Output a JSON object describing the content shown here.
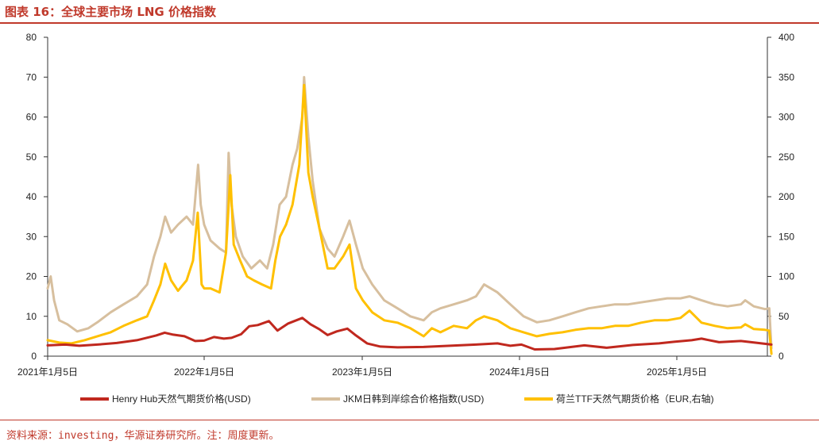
{
  "figure": {
    "title": "图表 16：全球主要市场 LNG 价格指数",
    "source": "资料来源：investing，华源证券研究所。注：周度更新。"
  },
  "colors": {
    "henry": "#c0281e",
    "jkm": "#d7bf9e",
    "ttf": "#ffc000",
    "rule": "#c0392b"
  },
  "chart_data": {
    "type": "line",
    "x_ticks": [
      "2021年1月5日",
      "2022年1月5日",
      "2023年1月5日",
      "2024年1月5日",
      "2025年1月5日"
    ],
    "x_range": [
      "2021-01-05",
      "2025-08-20"
    ],
    "y_left": {
      "ticks": [
        0,
        10,
        20,
        30,
        40,
        50,
        60,
        70,
        80
      ],
      "ylim": [
        0,
        80
      ]
    },
    "y_right": {
      "ticks": [
        0,
        50,
        100,
        150,
        200,
        250,
        300,
        350,
        400
      ],
      "ylim": [
        0,
        400
      ]
    },
    "grid": false,
    "legend_position": "bottom",
    "series": [
      {
        "name": "Henry Hub天然气期货价格(USD)",
        "axis": "left",
        "points": [
          [
            "2021-01-05",
            2.7
          ],
          [
            "2021-02-15",
            2.9
          ],
          [
            "2021-03-20",
            2.6
          ],
          [
            "2021-05-01",
            2.9
          ],
          [
            "2021-06-15",
            3.3
          ],
          [
            "2021-08-01",
            4.0
          ],
          [
            "2021-09-15",
            5.2
          ],
          [
            "2021-10-05",
            5.9
          ],
          [
            "2021-10-25",
            5.4
          ],
          [
            "2021-11-20",
            5.0
          ],
          [
            "2021-12-15",
            3.8
          ],
          [
            "2022-01-05",
            3.9
          ],
          [
            "2022-01-28",
            4.8
          ],
          [
            "2022-02-20",
            4.4
          ],
          [
            "2022-03-10",
            4.6
          ],
          [
            "2022-04-01",
            5.5
          ],
          [
            "2022-04-20",
            7.5
          ],
          [
            "2022-05-10",
            7.8
          ],
          [
            "2022-06-05",
            8.8
          ],
          [
            "2022-06-25",
            6.4
          ],
          [
            "2022-07-20",
            8.2
          ],
          [
            "2022-08-22",
            9.6
          ],
          [
            "2022-09-10",
            8.0
          ],
          [
            "2022-09-30",
            6.8
          ],
          [
            "2022-10-20",
            5.3
          ],
          [
            "2022-11-10",
            6.2
          ],
          [
            "2022-12-05",
            6.9
          ],
          [
            "2022-12-25",
            5.2
          ],
          [
            "2023-01-20",
            3.2
          ],
          [
            "2023-02-20",
            2.4
          ],
          [
            "2023-04-01",
            2.2
          ],
          [
            "2023-06-01",
            2.3
          ],
          [
            "2023-08-01",
            2.6
          ],
          [
            "2023-10-01",
            2.9
          ],
          [
            "2023-11-20",
            3.2
          ],
          [
            "2023-12-20",
            2.6
          ],
          [
            "2024-01-15",
            2.9
          ],
          [
            "2024-02-15",
            1.7
          ],
          [
            "2024-04-01",
            1.8
          ],
          [
            "2024-06-10",
            2.7
          ],
          [
            "2024-08-01",
            2.1
          ],
          [
            "2024-10-01",
            2.8
          ],
          [
            "2024-12-01",
            3.2
          ],
          [
            "2025-01-05",
            3.6
          ],
          [
            "2025-02-15",
            4.0
          ],
          [
            "2025-03-10",
            4.4
          ],
          [
            "2025-04-20",
            3.5
          ],
          [
            "2025-06-10",
            3.8
          ],
          [
            "2025-07-20",
            3.3
          ],
          [
            "2025-08-20",
            2.9
          ]
        ]
      },
      {
        "name": "JKM日韩到岸综合价格指数(USD)",
        "axis": "left",
        "points": [
          [
            "2021-01-05",
            17
          ],
          [
            "2021-01-12",
            20
          ],
          [
            "2021-01-20",
            14
          ],
          [
            "2021-02-01",
            9
          ],
          [
            "2021-02-20",
            8
          ],
          [
            "2021-03-15",
            6.2
          ],
          [
            "2021-04-10",
            7
          ],
          [
            "2021-05-01",
            8.5
          ],
          [
            "2021-06-01",
            11
          ],
          [
            "2021-07-01",
            13
          ],
          [
            "2021-08-01",
            15
          ],
          [
            "2021-08-25",
            18
          ],
          [
            "2021-09-10",
            25
          ],
          [
            "2021-09-25",
            30
          ],
          [
            "2021-10-06",
            35
          ],
          [
            "2021-10-20",
            31
          ],
          [
            "2021-11-05",
            33
          ],
          [
            "2021-11-25",
            35
          ],
          [
            "2021-12-10",
            33
          ],
          [
            "2021-12-22",
            48
          ],
          [
            "2021-12-28",
            38
          ],
          [
            "2022-01-05",
            33
          ],
          [
            "2022-01-20",
            29
          ],
          [
            "2022-02-10",
            27
          ],
          [
            "2022-02-25",
            26
          ],
          [
            "2022-03-03",
            51
          ],
          [
            "2022-03-10",
            38
          ],
          [
            "2022-03-20",
            30
          ],
          [
            "2022-04-05",
            25
          ],
          [
            "2022-04-25",
            22
          ],
          [
            "2022-05-15",
            24
          ],
          [
            "2022-06-01",
            22
          ],
          [
            "2022-06-15",
            28
          ],
          [
            "2022-06-30",
            38
          ],
          [
            "2022-07-15",
            40
          ],
          [
            "2022-07-30",
            48
          ],
          [
            "2022-08-10",
            52
          ],
          [
            "2022-08-22",
            60
          ],
          [
            "2022-08-26",
            70
          ],
          [
            "2022-09-05",
            55
          ],
          [
            "2022-09-15",
            44
          ],
          [
            "2022-10-01",
            32
          ],
          [
            "2022-10-20",
            27
          ],
          [
            "2022-11-05",
            25
          ],
          [
            "2022-11-25",
            30
          ],
          [
            "2022-12-10",
            34
          ],
          [
            "2022-12-25",
            28
          ],
          [
            "2023-01-10",
            22
          ],
          [
            "2023-02-01",
            18
          ],
          [
            "2023-03-01",
            14
          ],
          [
            "2023-04-01",
            12
          ],
          [
            "2023-05-01",
            10
          ],
          [
            "2023-06-01",
            9
          ],
          [
            "2023-06-20",
            11
          ],
          [
            "2023-07-10",
            12
          ],
          [
            "2023-08-10",
            13
          ],
          [
            "2023-09-10",
            14
          ],
          [
            "2023-10-01",
            15
          ],
          [
            "2023-10-20",
            18
          ],
          [
            "2023-11-20",
            16
          ],
          [
            "2023-12-20",
            13
          ],
          [
            "2024-01-20",
            10
          ],
          [
            "2024-02-20",
            8.5
          ],
          [
            "2024-03-20",
            9
          ],
          [
            "2024-04-20",
            10
          ],
          [
            "2024-05-20",
            11
          ],
          [
            "2024-06-20",
            12
          ],
          [
            "2024-07-20",
            12.5
          ],
          [
            "2024-08-20",
            13
          ],
          [
            "2024-09-20",
            13
          ],
          [
            "2024-10-20",
            13.5
          ],
          [
            "2024-11-20",
            14
          ],
          [
            "2024-12-20",
            14.5
          ],
          [
            "2025-01-20",
            14.5
          ],
          [
            "2025-02-10",
            15
          ],
          [
            "2025-03-10",
            14
          ],
          [
            "2025-04-10",
            13
          ],
          [
            "2025-05-10",
            12.5
          ],
          [
            "2025-06-10",
            13
          ],
          [
            "2025-06-20",
            14
          ],
          [
            "2025-07-10",
            12.5
          ],
          [
            "2025-08-05",
            11.8
          ],
          [
            "2025-08-15",
            12
          ],
          [
            "2025-08-20",
            2
          ]
        ]
      },
      {
        "name": "荷兰TTF天然气期货价格（EUR,右轴)",
        "axis": "right",
        "points": [
          [
            "2021-01-05",
            20
          ],
          [
            "2021-02-01",
            17
          ],
          [
            "2021-03-01",
            16
          ],
          [
            "2021-04-01",
            20
          ],
          [
            "2021-05-01",
            25
          ],
          [
            "2021-06-01",
            30
          ],
          [
            "2021-07-01",
            38
          ],
          [
            "2021-08-01",
            45
          ],
          [
            "2021-08-25",
            50
          ],
          [
            "2021-09-10",
            70
          ],
          [
            "2021-09-25",
            90
          ],
          [
            "2021-10-06",
            116
          ],
          [
            "2021-10-20",
            95
          ],
          [
            "2021-11-05",
            82
          ],
          [
            "2021-11-25",
            95
          ],
          [
            "2021-12-10",
            120
          ],
          [
            "2021-12-21",
            180
          ],
          [
            "2021-12-30",
            90
          ],
          [
            "2022-01-05",
            85
          ],
          [
            "2022-01-20",
            85
          ],
          [
            "2022-02-10",
            80
          ],
          [
            "2022-02-25",
            130
          ],
          [
            "2022-03-07",
            227
          ],
          [
            "2022-03-15",
            140
          ],
          [
            "2022-03-30",
            120
          ],
          [
            "2022-04-15",
            100
          ],
          [
            "2022-05-01",
            95
          ],
          [
            "2022-05-20",
            90
          ],
          [
            "2022-06-10",
            85
          ],
          [
            "2022-06-20",
            120
          ],
          [
            "2022-07-01",
            150
          ],
          [
            "2022-07-15",
            165
          ],
          [
            "2022-07-30",
            190
          ],
          [
            "2022-08-15",
            240
          ],
          [
            "2022-08-26",
            340
          ],
          [
            "2022-09-05",
            230
          ],
          [
            "2022-09-15",
            200
          ],
          [
            "2022-10-01",
            160
          ],
          [
            "2022-10-20",
            110
          ],
          [
            "2022-11-05",
            110
          ],
          [
            "2022-11-25",
            125
          ],
          [
            "2022-12-10",
            140
          ],
          [
            "2022-12-25",
            85
          ],
          [
            "2023-01-10",
            70
          ],
          [
            "2023-02-01",
            55
          ],
          [
            "2023-03-01",
            45
          ],
          [
            "2023-04-01",
            42
          ],
          [
            "2023-05-01",
            35
          ],
          [
            "2023-06-01",
            25
          ],
          [
            "2023-06-20",
            35
          ],
          [
            "2023-07-10",
            30
          ],
          [
            "2023-08-10",
            38
          ],
          [
            "2023-09-10",
            35
          ],
          [
            "2023-10-01",
            45
          ],
          [
            "2023-10-20",
            50
          ],
          [
            "2023-11-20",
            45
          ],
          [
            "2023-12-20",
            35
          ],
          [
            "2024-01-20",
            30
          ],
          [
            "2024-02-20",
            25
          ],
          [
            "2024-03-20",
            28
          ],
          [
            "2024-04-20",
            30
          ],
          [
            "2024-05-20",
            33
          ],
          [
            "2024-06-20",
            35
          ],
          [
            "2024-07-20",
            35
          ],
          [
            "2024-08-20",
            38
          ],
          [
            "2024-09-20",
            38
          ],
          [
            "2024-10-20",
            42
          ],
          [
            "2024-11-20",
            45
          ],
          [
            "2024-12-20",
            45
          ],
          [
            "2025-01-20",
            48
          ],
          [
            "2025-02-10",
            57
          ],
          [
            "2025-03-10",
            42
          ],
          [
            "2025-04-10",
            38
          ],
          [
            "2025-05-10",
            35
          ],
          [
            "2025-06-10",
            36
          ],
          [
            "2025-06-20",
            40
          ],
          [
            "2025-07-10",
            34
          ],
          [
            "2025-08-05",
            33
          ],
          [
            "2025-08-15",
            32
          ],
          [
            "2025-08-20",
            3
          ]
        ]
      }
    ]
  }
}
